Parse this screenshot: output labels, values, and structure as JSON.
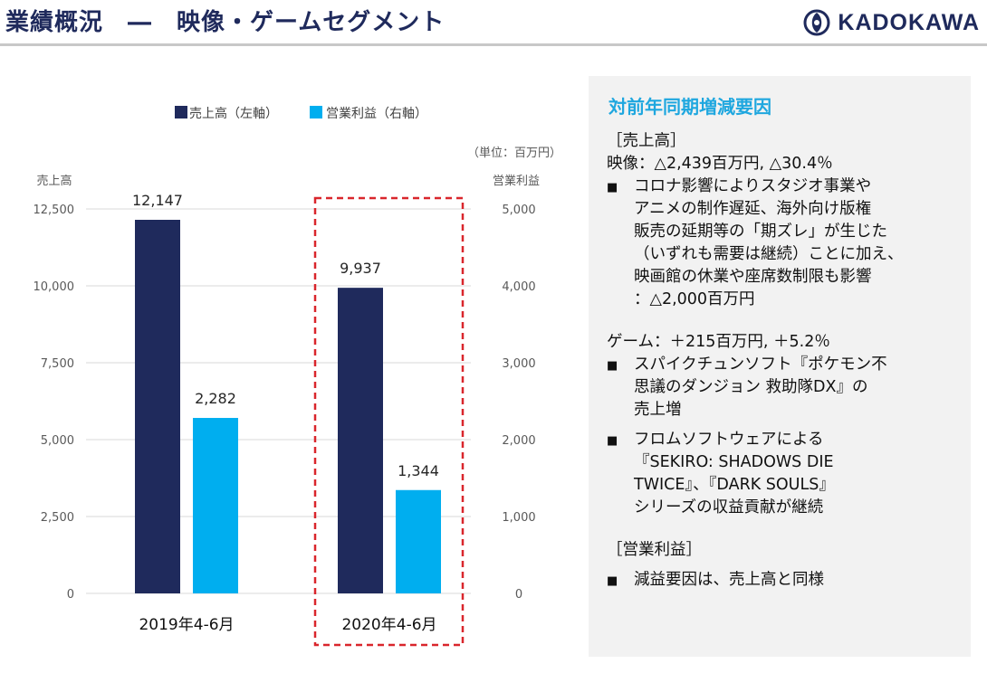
{
  "header": {
    "title": "業績概況　―　映像・ゲームセグメント",
    "logo_text": "KADOKAWA"
  },
  "chart_data": {
    "type": "bar",
    "legend": [
      "売上高（左軸）",
      "営業利益（右軸）"
    ],
    "unit_note": "（単位：百万円）",
    "left_axis_label": "売上高",
    "right_axis_label": "営業利益",
    "categories": [
      "2019年4-6月",
      "2020年4-6月"
    ],
    "left_ticks": [
      "0",
      "2,500",
      "5,000",
      "7,500",
      "10,000",
      "12,500"
    ],
    "right_ticks": [
      "0",
      "1,000",
      "2,000",
      "3,000",
      "4,000",
      "5,000"
    ],
    "ylim_left": [
      0,
      12500
    ],
    "ylim_right": [
      0,
      5000
    ],
    "series": [
      {
        "name": "売上高（左軸）",
        "axis": "left",
        "color": "#1f2a5c",
        "values": [
          12147,
          9937
        ],
        "labels": [
          "12,147",
          "9,937"
        ]
      },
      {
        "name": "営業利益（右軸）",
        "axis": "right",
        "color": "#00aeef",
        "values": [
          2282,
          1344
        ],
        "labels": [
          "2,282",
          "1,344"
        ]
      }
    ],
    "highlight_category": "2020年4-6月",
    "highlight_color": "#d9262c"
  },
  "panel": {
    "heading": "対前年同期増減要因",
    "sales_header": "［売上高］",
    "video_line": "映像：△2,439百万円, △30.4％",
    "video_bullet_lines": [
      "コロナ影響によりスタジオ事業や",
      "アニメの制作遅延、海外向け版権",
      "販売の延期等の「期ズレ」が生じた",
      "（いずれも需要は継続）ことに加え、",
      "映画館の休業や座席数制限も影響",
      "：△2,000百万円"
    ],
    "game_line": "ゲーム：＋215百万円, ＋5.2％",
    "game_bullet1_lines": [
      "スパイクチュンソフト『ポケモン不",
      "思議のダンジョン 救助隊DX』の",
      "売上増"
    ],
    "game_bullet2_lines": [
      "フロムソフトウェアによる",
      "『SEKIRO: SHADOWS DIE",
      "TWICE』、『DARK SOULS』",
      "シリーズの収益貢献が継続"
    ],
    "op_header": "［営業利益］",
    "op_bullet": "減益要因は、売上高と同様",
    "bullet_glyph": "■"
  }
}
